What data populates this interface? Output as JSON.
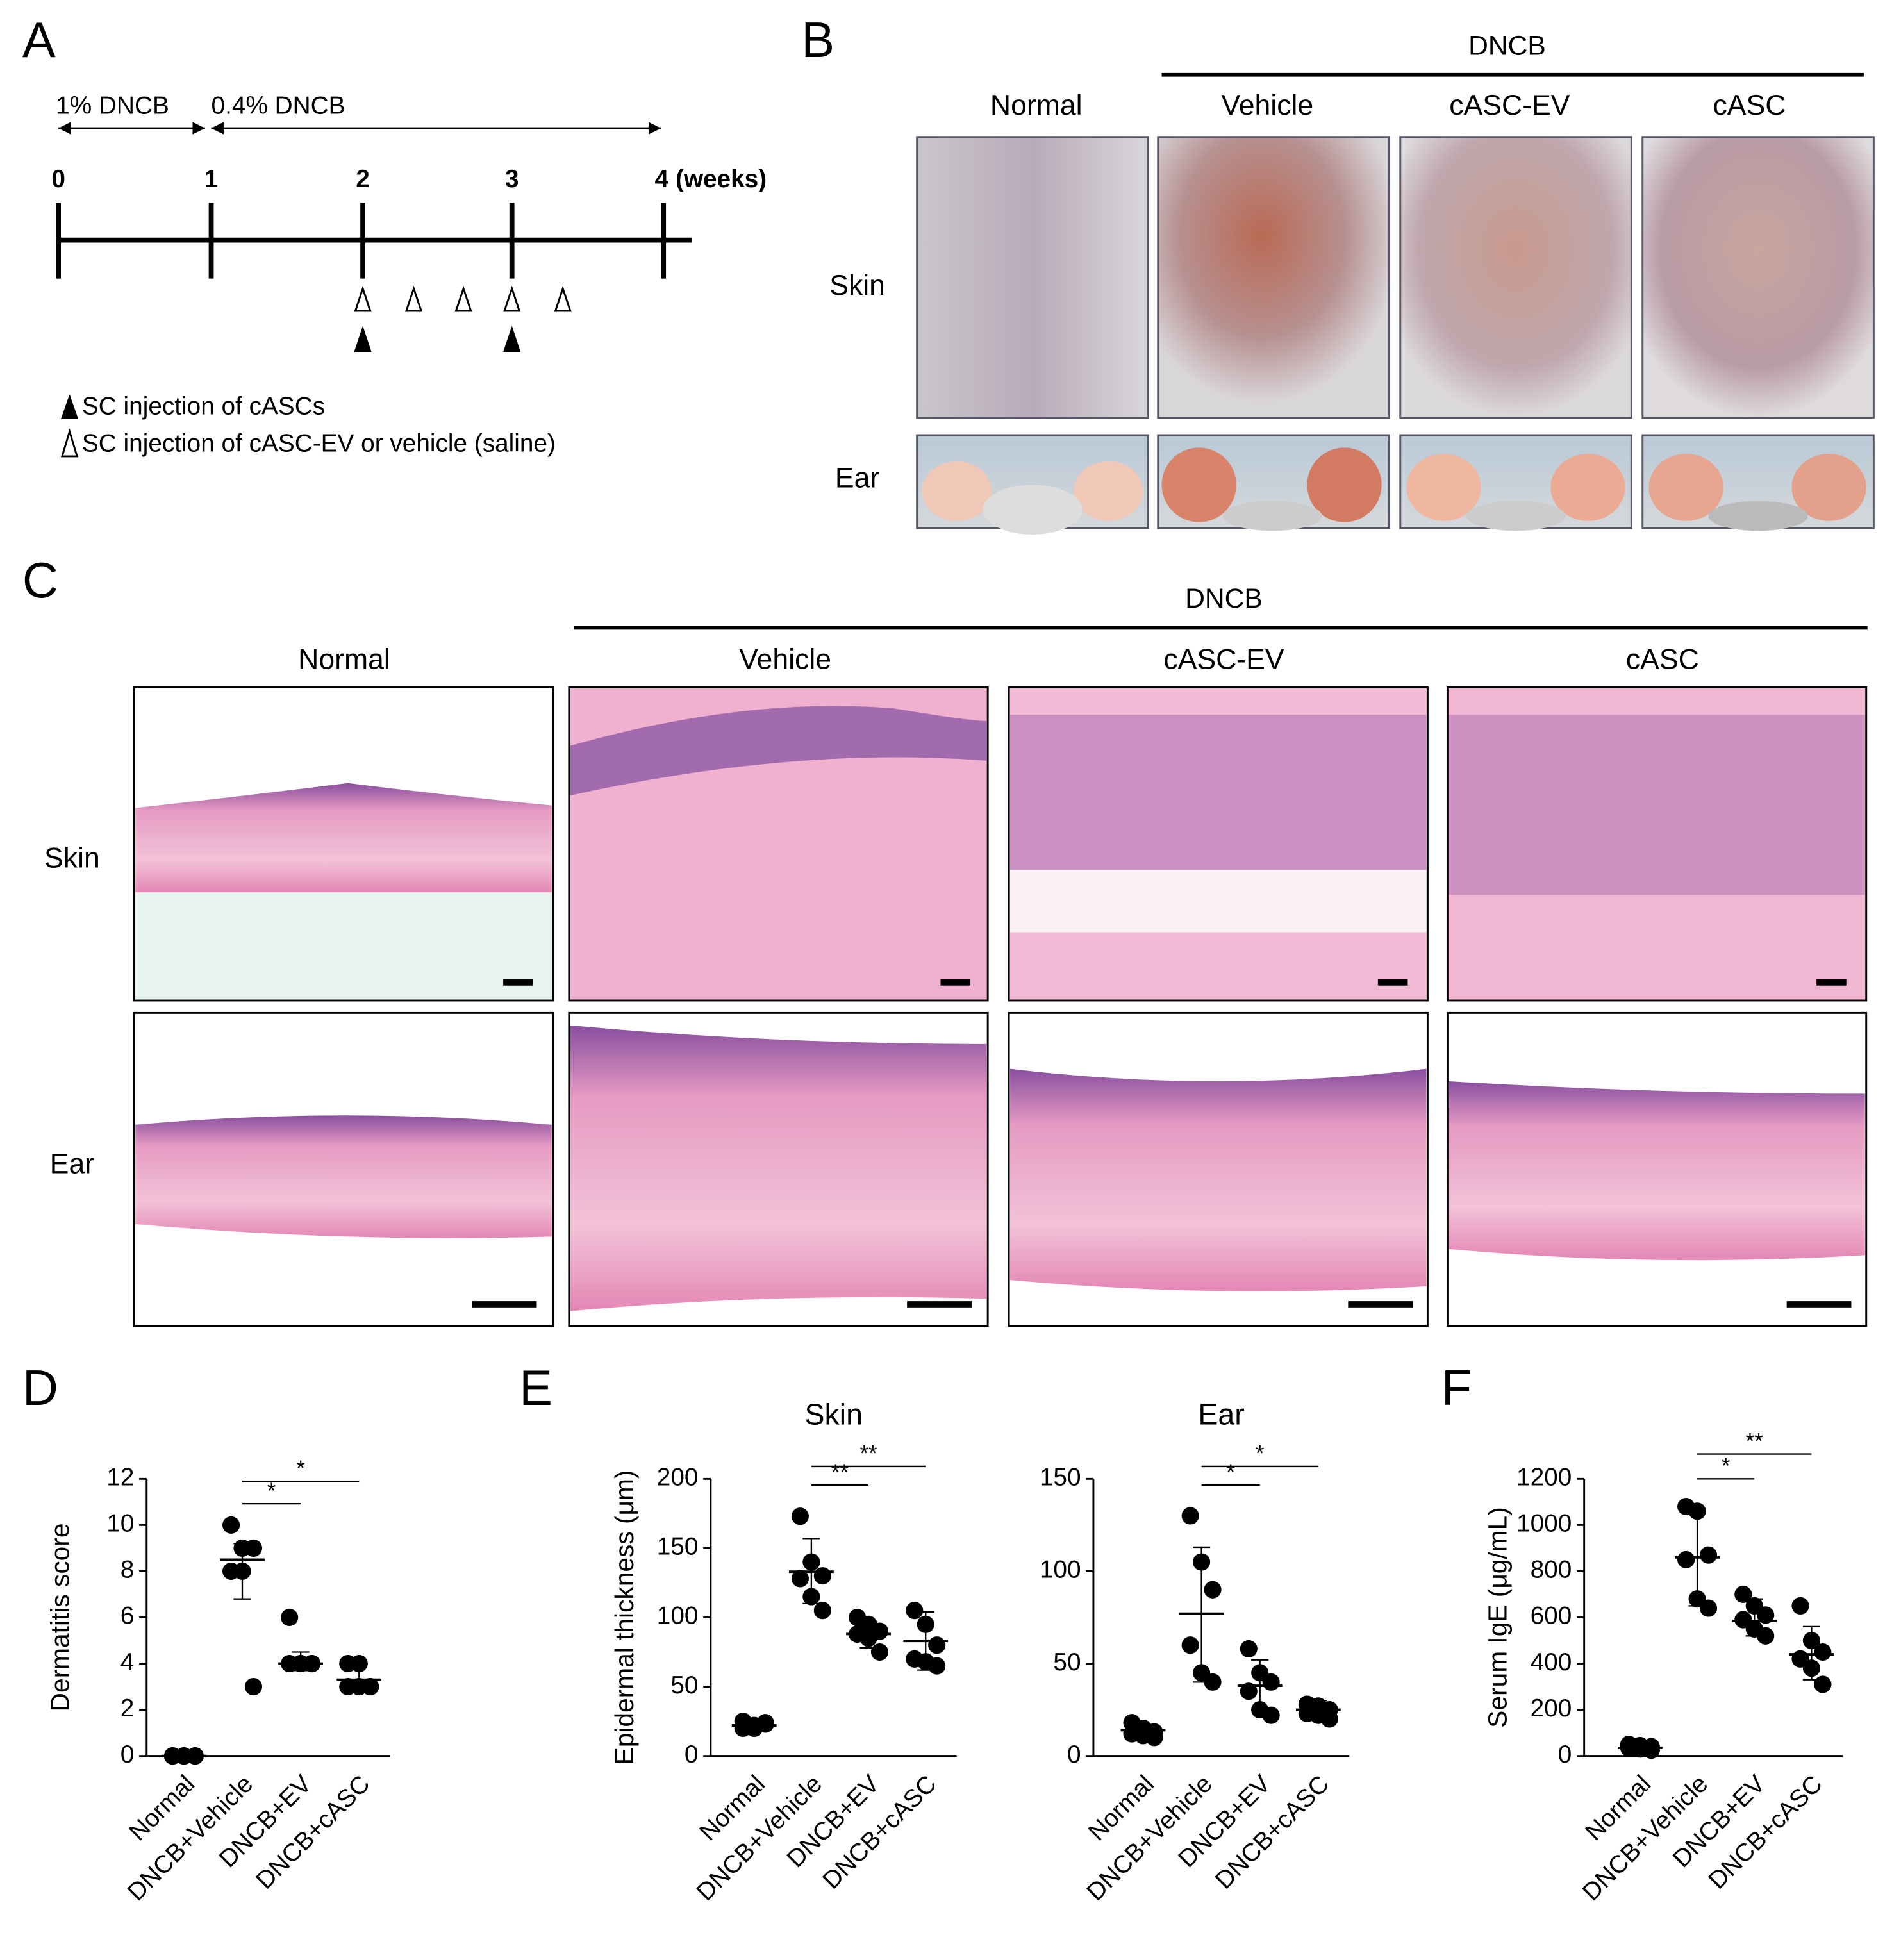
{
  "panel_labels": [
    "A",
    "B",
    "C",
    "D",
    "E",
    "F"
  ],
  "panel_a": {
    "phases": [
      "1% DNCB",
      "0.4% DNCB"
    ],
    "timeline_labels": [
      "0",
      "1",
      "2",
      "3",
      "4 (weeks)"
    ],
    "legend": [
      "SC injection of cASCs",
      "SC injection of cASC-EV or vehicle (saline)"
    ]
  },
  "panel_b": {
    "group": "DNCB",
    "columns": [
      "Normal",
      "Vehicle",
      "cASC-EV",
      "cASC"
    ],
    "rows": [
      "Skin",
      "Ear"
    ]
  },
  "panel_c": {
    "group": "DNCB",
    "columns": [
      "Normal",
      "Vehicle",
      "cASC-EV",
      "cASC"
    ],
    "rows": [
      "Skin",
      "Ear"
    ]
  },
  "chart_data": [
    {
      "type": "dotplot",
      "y_label": "Dermatitis score",
      "categories": [
        "Normal",
        "DNCB+Vehicle",
        "DNCB+EV",
        "DNCB+cASC"
      ],
      "points": [
        [
          0,
          0,
          0,
          0,
          0,
          0
        ],
        [
          10,
          9,
          9,
          8,
          8,
          3
        ],
        [
          6,
          4,
          4,
          4,
          4,
          4
        ],
        [
          4,
          4,
          3,
          3,
          3,
          3
        ]
      ],
      "centers": [
        0,
        8.5,
        4,
        3.3
      ],
      "whiskers": [
        [
          0,
          0
        ],
        [
          6.8,
          9.2
        ],
        [
          3.7,
          4.5
        ],
        [
          3.1,
          4
        ]
      ],
      "significance": [
        "*",
        "*"
      ],
      "ylim": [
        0,
        12
      ],
      "yticks": [
        0,
        2,
        4,
        6,
        8,
        10,
        12
      ],
      "color": "#000000"
    },
    {
      "type": "dotplot",
      "title": "Skin",
      "y_label": "Epidermal thickness (μm)",
      "categories": [
        "Normal",
        "DNCB+Vehicle",
        "DNCB+EV",
        "DNCB+cASC"
      ],
      "points": [
        [
          20,
          22,
          24,
          25,
          20,
          23
        ],
        [
          173,
          140,
          130,
          128,
          115,
          105
        ],
        [
          100,
          95,
          90,
          88,
          85,
          75
        ],
        [
          105,
          95,
          80,
          70,
          68,
          65
        ]
      ],
      "centers": [
        22,
        133,
        88,
        83
      ],
      "whiskers": [
        [
          19,
          26
        ],
        [
          110,
          157
        ],
        [
          78,
          97
        ],
        [
          62,
          104
        ]
      ],
      "significance": [
        "**",
        "**"
      ],
      "ylim": [
        0,
        200
      ],
      "yticks": [
        0,
        50,
        100,
        150,
        200
      ],
      "color": "#000000"
    },
    {
      "type": "dotplot",
      "title": "Ear",
      "categories": [
        "Normal",
        "DNCB+Vehicle",
        "DNCB+EV",
        "DNCB+cASC"
      ],
      "points": [
        [
          18,
          15,
          13,
          12,
          11,
          10
        ],
        [
          130,
          105,
          90,
          60,
          45,
          40
        ],
        [
          58,
          45,
          40,
          35,
          25,
          22
        ],
        [
          28,
          27,
          25,
          23,
          22,
          20
        ]
      ],
      "centers": [
        14,
        77,
        38,
        25
      ],
      "whiskers": [
        [
          10,
          17
        ],
        [
          40,
          113
        ],
        [
          25,
          52
        ],
        [
          20,
          30
        ]
      ],
      "significance": [
        "*",
        "*"
      ],
      "ylim": [
        0,
        150
      ],
      "yticks": [
        0,
        50,
        100,
        150
      ],
      "color": "#000000"
    },
    {
      "type": "dotplot",
      "y_label": "Serum IgE (μg/mL)",
      "categories": [
        "Normal",
        "DNCB+Vehicle",
        "DNCB+EV",
        "DNCB+cASC"
      ],
      "points": [
        [
          50,
          45,
          40,
          35,
          30,
          25
        ],
        [
          1080,
          1060,
          870,
          850,
          680,
          640
        ],
        [
          700,
          650,
          610,
          590,
          550,
          520
        ],
        [
          650,
          500,
          450,
          420,
          380,
          310
        ]
      ],
      "centers": [
        35,
        860,
        585,
        440
      ],
      "whiskers": [
        [
          20,
          50
        ],
        [
          650,
          1070
        ],
        [
          520,
          680
        ],
        [
          330,
          560
        ]
      ],
      "significance": [
        "*",
        "**"
      ],
      "ylim": [
        0,
        1200
      ],
      "yticks": [
        0,
        200,
        400,
        600,
        800,
        1000,
        1200
      ],
      "color": "#000000"
    }
  ]
}
